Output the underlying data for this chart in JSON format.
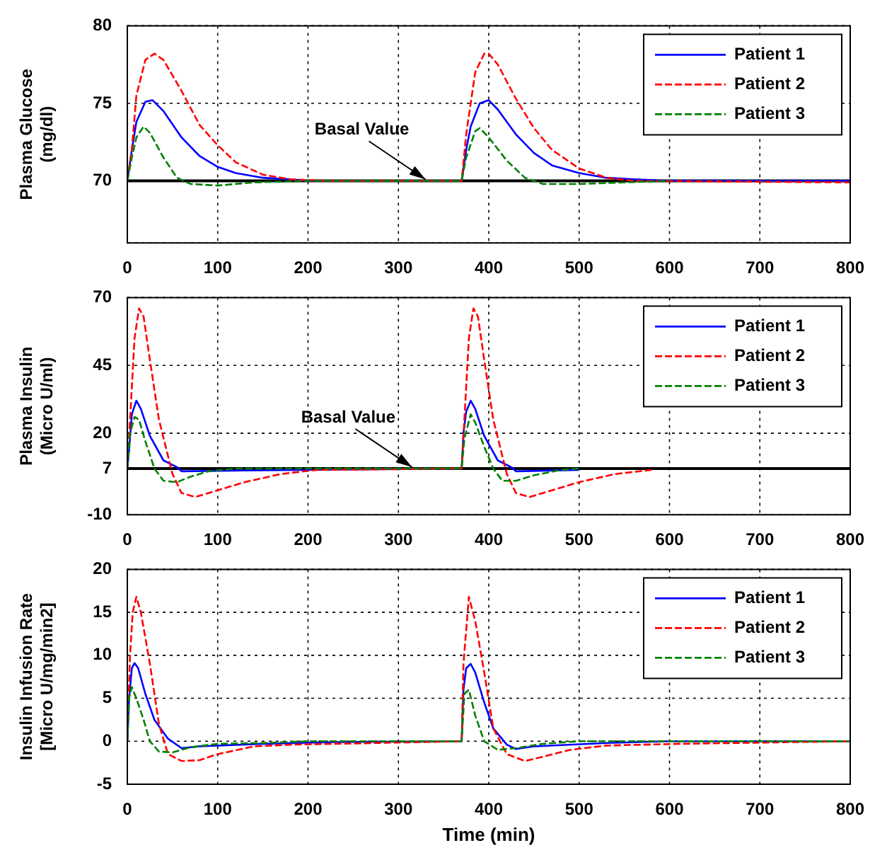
{
  "chart_data": [
    {
      "type": "line",
      "ylabel": "Plasma Glucose\n(mg/dl)",
      "xlim": [
        0,
        800
      ],
      "xticks": [
        0,
        100,
        200,
        300,
        400,
        500,
        600,
        700,
        800
      ],
      "ylim": [
        66,
        80
      ],
      "yticks": [
        {
          "value": 66,
          "label": null
        },
        70,
        75,
        80
      ],
      "grid": true,
      "legend": "top right",
      "marker": "none",
      "ref_lines": [
        {
          "axis": "y",
          "value": 70,
          "color": "#000000"
        }
      ],
      "annotations": [
        {
          "text": "Basal Value",
          "x": 330,
          "y": 70
        }
      ],
      "series": [
        {
          "name": "Patient 1",
          "color": "#0000ff",
          "line_style": "solid",
          "x": [
            0,
            5,
            10,
            20,
            28,
            40,
            60,
            80,
            100,
            120,
            150,
            180,
            200,
            370,
            375,
            380,
            390,
            400,
            410,
            430,
            450,
            470,
            500,
            530,
            560,
            600,
            800
          ],
          "values": [
            70,
            72,
            73.8,
            75.1,
            75.2,
            74.5,
            72.8,
            71.6,
            70.9,
            70.5,
            70.2,
            70.1,
            70,
            70,
            72,
            73.5,
            75,
            75.2,
            74.6,
            73,
            71.8,
            71,
            70.5,
            70.2,
            70.1,
            70,
            70
          ]
        },
        {
          "name": "Patient 2",
          "color": "#ff0000",
          "line_style": "dashed",
          "x": [
            0,
            5,
            10,
            20,
            30,
            40,
            60,
            80,
            100,
            120,
            150,
            180,
            220,
            370,
            375,
            385,
            395,
            400,
            410,
            430,
            450,
            470,
            500,
            530,
            560,
            800
          ],
          "values": [
            70,
            72,
            75.5,
            77.8,
            78.2,
            77.8,
            75.8,
            73.6,
            72.3,
            71.2,
            70.4,
            70.1,
            70,
            70,
            73,
            77,
            78.2,
            78.2,
            77.5,
            75.3,
            73.4,
            72,
            70.8,
            70.2,
            70,
            69.9
          ]
        },
        {
          "name": "Patient 3",
          "color": "#008000",
          "line_style": "dashed",
          "x": [
            0,
            5,
            10,
            18,
            25,
            40,
            55,
            70,
            100,
            140,
            200,
            370,
            375,
            385,
            390,
            400,
            420,
            440,
            460,
            500,
            550,
            600
          ],
          "values": [
            70,
            71.5,
            72.8,
            73.5,
            73.1,
            71.5,
            70.2,
            69.8,
            69.7,
            69.9,
            70,
            70,
            71.5,
            73.2,
            73.4,
            72.8,
            71.3,
            70.2,
            69.8,
            69.8,
            69.9,
            70
          ]
        }
      ]
    },
    {
      "type": "line",
      "ylabel": "Plasma Insulin\n(Micro U/ml)",
      "xlim": [
        0,
        800
      ],
      "xticks": [
        0,
        100,
        200,
        300,
        400,
        500,
        600,
        700,
        800
      ],
      "ylim": [
        -10,
        70
      ],
      "yticks": [
        -10,
        7,
        20,
        45,
        70
      ],
      "grid": true,
      "legend": "top right",
      "marker": "none",
      "ref_lines": [
        {
          "axis": "y",
          "value": 7,
          "color": "#000000"
        }
      ],
      "annotations": [
        {
          "text": "Basal Value",
          "x": 315,
          "y": 7
        }
      ],
      "series": [
        {
          "name": "Patient 1",
          "color": "#0000ff",
          "line_style": "solid",
          "x": [
            0,
            2,
            5,
            10,
            15,
            25,
            40,
            55,
            60,
            130,
            370,
            372,
            375,
            380,
            385,
            395,
            410,
            425,
            430,
            500
          ],
          "values": [
            7,
            14,
            27,
            32,
            29,
            19,
            10,
            7.5,
            6,
            6.3,
            7,
            20,
            28,
            32,
            29,
            19,
            10,
            7.5,
            6,
            6.5
          ]
        },
        {
          "name": "Patient 2",
          "color": "#ff0000",
          "line_style": "dashed",
          "x": [
            0,
            3,
            8,
            13,
            18,
            25,
            35,
            50,
            60,
            75,
            100,
            130,
            170,
            210,
            370,
            373,
            378,
            383,
            388,
            395,
            405,
            420,
            430,
            445,
            470,
            500,
            540,
            580
          ],
          "values": [
            7,
            25,
            55,
            66,
            63,
            47,
            25,
            5,
            -2,
            -3.5,
            -1,
            2,
            5,
            6.5,
            7,
            25,
            55,
            66,
            63,
            47,
            25,
            5,
            -2,
            -3.5,
            -1,
            2,
            5,
            6.5
          ]
        },
        {
          "name": "Patient 3",
          "color": "#008000",
          "line_style": "dashed",
          "x": [
            0,
            3,
            8,
            13,
            20,
            30,
            40,
            55,
            70,
            90,
            120,
            370,
            373,
            380,
            385,
            395,
            405,
            415,
            430,
            450,
            480,
            500
          ],
          "values": [
            7,
            20,
            26,
            25,
            17,
            7,
            2.5,
            2,
            4,
            6,
            7,
            7,
            18,
            27,
            24,
            15,
            7,
            2.5,
            2.5,
            4.5,
            6.5,
            7
          ]
        }
      ]
    },
    {
      "type": "line",
      "ylabel": "Insulin Infusion Rate\n[Micro U/mg/min2]",
      "xlabel": "Time (min)",
      "xlim": [
        0,
        800
      ],
      "xticks": [
        0,
        100,
        200,
        300,
        400,
        500,
        600,
        700,
        800
      ],
      "ylim": [
        -5,
        20
      ],
      "yticks": [
        -5,
        0,
        5,
        10,
        15,
        20
      ],
      "grid": true,
      "legend": "top right",
      "marker": "none",
      "series": [
        {
          "name": "Patient 1",
          "color": "#0000ff",
          "line_style": "solid",
          "x": [
            0,
            2,
            5,
            8,
            12,
            20,
            30,
            45,
            60,
            80,
            150,
            230,
            370,
            372,
            375,
            380,
            385,
            395,
            405,
            420,
            430,
            450,
            530,
            600,
            800
          ],
          "values": [
            0,
            5,
            8.5,
            9.1,
            8.5,
            5.5,
            2.5,
            0.3,
            -0.8,
            -0.6,
            -0.3,
            -0.1,
            0,
            6,
            8.5,
            9,
            8,
            4.5,
            1.5,
            -0.4,
            -0.9,
            -0.6,
            -0.2,
            0,
            0
          ]
        },
        {
          "name": "Patient 2",
          "color": "#ff0000",
          "line_style": "dashed",
          "x": [
            0,
            3,
            6,
            10,
            15,
            25,
            35,
            45,
            60,
            80,
            100,
            140,
            180,
            230,
            370,
            372,
            378,
            385,
            395,
            405,
            420,
            440,
            460,
            490,
            530,
            610,
            800
          ],
          "values": [
            0,
            10,
            15,
            16.8,
            15,
            9,
            2,
            -1.5,
            -2.3,
            -2.2,
            -1.5,
            -0.6,
            -0.4,
            -0.3,
            0,
            9,
            16.8,
            14,
            8,
            1.5,
            -1.5,
            -2.3,
            -1.8,
            -1,
            -0.5,
            -0.3,
            0
          ]
        },
        {
          "name": "Patient 3",
          "color": "#008000",
          "line_style": "dashed",
          "x": [
            0,
            2,
            5,
            10,
            18,
            25,
            35,
            50,
            70,
            100,
            150,
            200,
            370,
            373,
            378,
            385,
            395,
            410,
            430,
            460,
            500,
            800
          ],
          "values": [
            0,
            5,
            6.3,
            5,
            2.5,
            0,
            -1.2,
            -1.3,
            -0.7,
            -0.3,
            -0.2,
            0,
            0,
            5.5,
            6,
            3,
            0,
            -1,
            -0.8,
            -0.3,
            0,
            0
          ]
        }
      ]
    }
  ]
}
